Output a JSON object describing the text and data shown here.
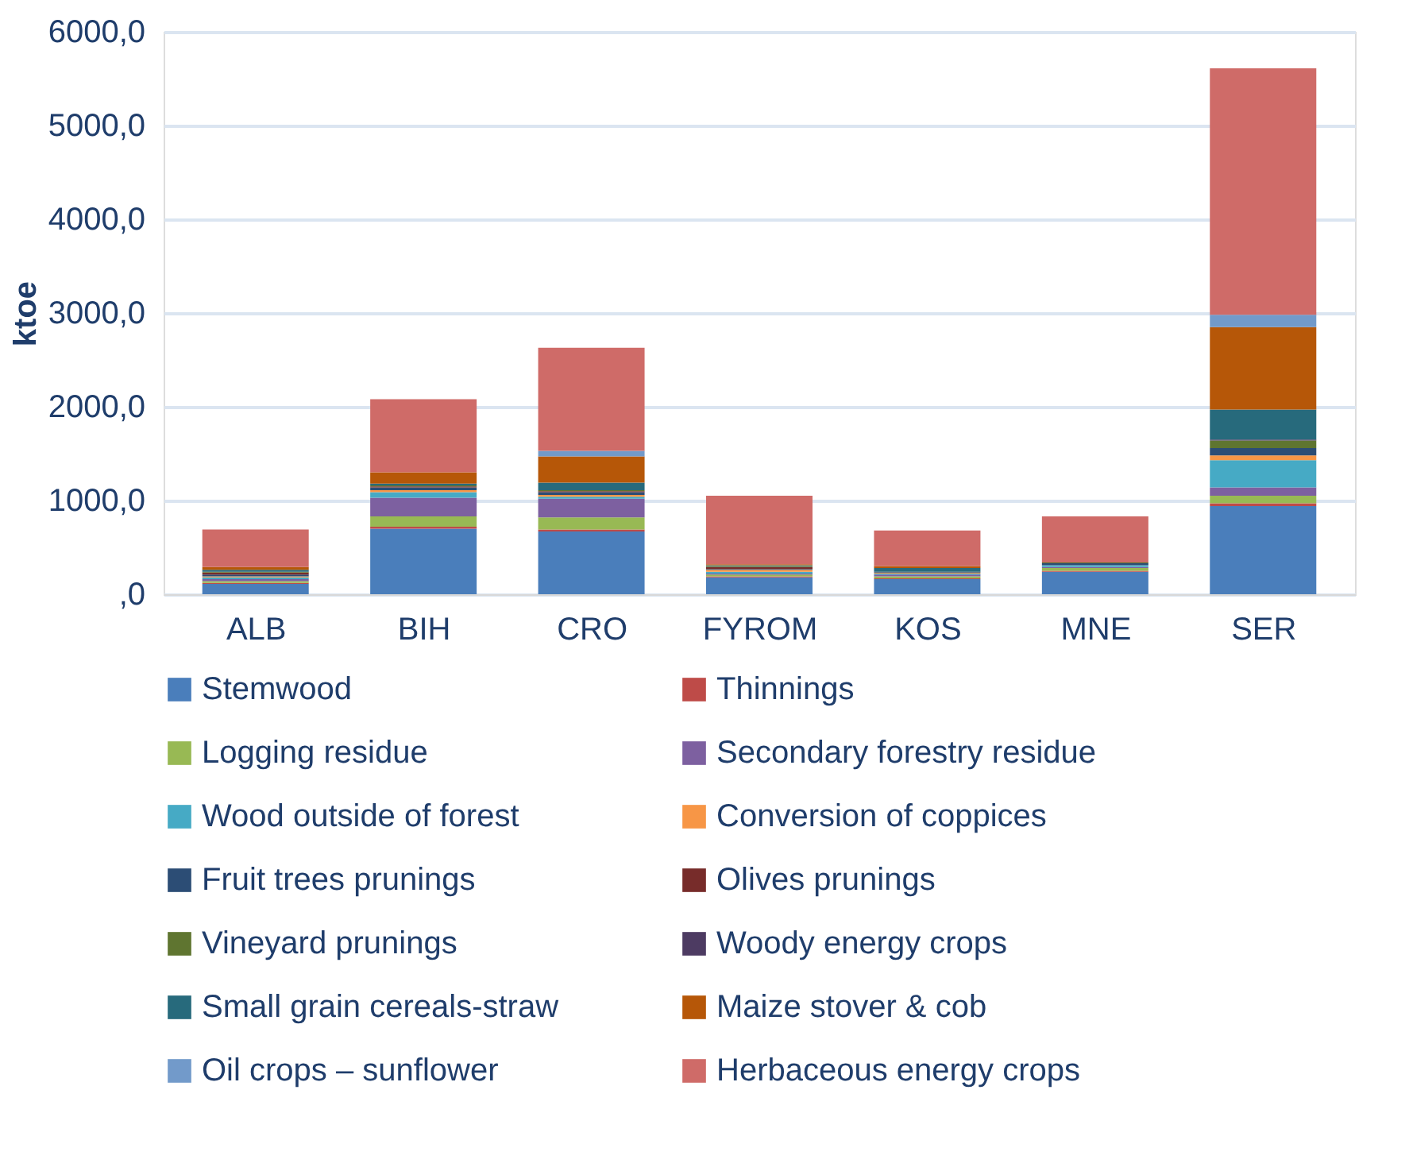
{
  "chart_data": {
    "type": "bar",
    "stacked": true,
    "ylabel": "ktoe",
    "categories": [
      "ALB",
      "BIH",
      "CRO",
      "FYROM",
      "KOS",
      "MNE",
      "SER"
    ],
    "ylim": [
      0,
      6000
    ],
    "yticks": [
      {
        "value": 0,
        "label": ",0"
      },
      {
        "value": 1000,
        "label": "1000,0"
      },
      {
        "value": 2000,
        "label": "2000,0"
      },
      {
        "value": 3000,
        "label": "3000,0"
      },
      {
        "value": 4000,
        "label": "4000,0"
      },
      {
        "value": 5000,
        "label": "5000,0"
      },
      {
        "value": 6000,
        "label": "6000,0"
      }
    ],
    "grid": "y",
    "legend": "bottom",
    "series": [
      {
        "name": "Stemwood",
        "color": "#4a7ebb",
        "values": [
          110,
          700,
          670,
          180,
          160,
          240,
          940
        ]
      },
      {
        "name": "Thinnings",
        "color": "#be4b48",
        "values": [
          10,
          20,
          20,
          10,
          10,
          10,
          30
        ]
      },
      {
        "name": "Logging residue",
        "color": "#98b954",
        "values": [
          20,
          110,
          130,
          20,
          20,
          30,
          80
        ]
      },
      {
        "name": "Secondary forestry residue",
        "color": "#7d60a0",
        "values": [
          20,
          200,
          200,
          10,
          20,
          10,
          90
        ]
      },
      {
        "name": "Wood outside of forest",
        "color": "#46aac5",
        "values": [
          20,
          60,
          20,
          20,
          10,
          20,
          290
        ]
      },
      {
        "name": "Conversion of coppices",
        "color": "#f79646",
        "values": [
          10,
          20,
          20,
          20,
          10,
          0,
          50
        ]
      },
      {
        "name": "Fruit trees prunings",
        "color": "#2c4d75",
        "values": [
          20,
          30,
          30,
          10,
          10,
          20,
          80
        ]
      },
      {
        "name": "Olives prunings",
        "color": "#772c2a",
        "values": [
          20,
          10,
          10,
          20,
          0,
          0,
          0
        ]
      },
      {
        "name": "Vineyard prunings",
        "color": "#5f7530",
        "values": [
          10,
          10,
          10,
          10,
          0,
          10,
          80
        ]
      },
      {
        "name": "Woody energy crops",
        "color": "#4d3b62",
        "values": [
          0,
          0,
          0,
          0,
          0,
          0,
          10
        ]
      },
      {
        "name": "Small grain cereals-straw",
        "color": "#276a7c",
        "values": [
          20,
          20,
          80,
          10,
          40,
          0,
          320
        ]
      },
      {
        "name": "Maize stover & cob",
        "color": "#b65708",
        "values": [
          30,
          120,
          280,
          10,
          20,
          0,
          880
        ]
      },
      {
        "name": "Oil crops – sunflower",
        "color": "#729aca",
        "values": [
          0,
          0,
          60,
          0,
          0,
          0,
          130
        ]
      },
      {
        "name": "Herbaceous energy crops",
        "color": "#cf6b68",
        "values": [
          400,
          780,
          1100,
          730,
          380,
          490,
          2630
        ]
      }
    ]
  }
}
